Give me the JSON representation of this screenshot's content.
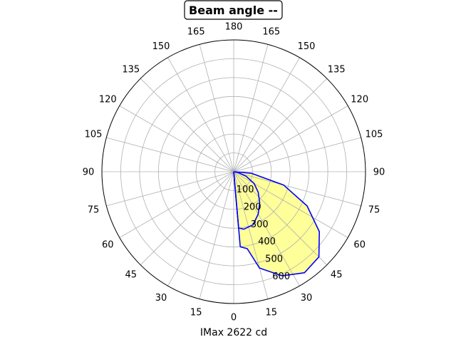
{
  "chart_data": {
    "type": "polar-line",
    "title": "Beam angle --",
    "xlabel": "IMax 2622 cd",
    "angle_tick_labels": [
      "0",
      "15",
      "30",
      "45",
      "60",
      "75",
      "90",
      "105",
      "120",
      "135",
      "150",
      "165",
      "180",
      "165",
      "150",
      "135",
      "120",
      "105",
      "90",
      "75",
      "60",
      "45",
      "30",
      "15"
    ],
    "radial_ticks": [
      100,
      200,
      300,
      400,
      500,
      600
    ],
    "rmax": 700,
    "fill_color": "#ffff99",
    "line_color": "#0000ff",
    "grid": true,
    "series": [
      {
        "points": [
          {
            "angle": 0,
            "r": 0
          },
          {
            "angle": 5,
            "r": 300
          },
          {
            "angle": 10,
            "r": 310
          },
          {
            "angle": 20,
            "r": 300
          },
          {
            "angle": 30,
            "r": 260
          },
          {
            "angle": 40,
            "r": 215
          },
          {
            "angle": 50,
            "r": 170
          },
          {
            "angle": 60,
            "r": 125
          },
          {
            "angle": 70,
            "r": 70
          },
          {
            "angle": 80,
            "r": 20
          },
          {
            "angle": 90,
            "r": 0
          },
          {
            "angle": 180,
            "r": 0
          }
        ]
      },
      {
        "points": [
          {
            "angle": 0,
            "r": 0
          },
          {
            "angle": 5,
            "r": 400
          },
          {
            "angle": 10,
            "r": 415
          },
          {
            "angle": 15,
            "r": 530
          },
          {
            "angle": 25,
            "r": 610
          },
          {
            "angle": 35,
            "r": 655
          },
          {
            "angle": 45,
            "r": 640
          },
          {
            "angle": 55,
            "r": 555
          },
          {
            "angle": 65,
            "r": 430
          },
          {
            "angle": 75,
            "r": 275
          },
          {
            "angle": 85,
            "r": 95
          },
          {
            "angle": 90,
            "r": 0
          },
          {
            "angle": 180,
            "r": 0
          }
        ]
      }
    ]
  }
}
